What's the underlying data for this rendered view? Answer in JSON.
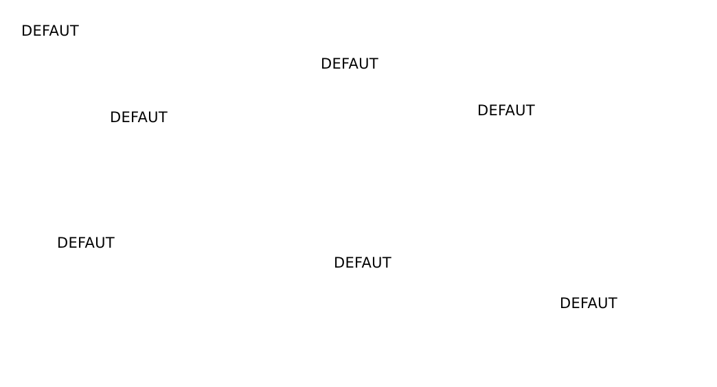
{
  "labels": [
    "DEFAUT",
    "DEFAUT",
    "DEFAUT",
    "DEFAUT",
    "DEFAUT",
    "DEFAUT",
    "DEFAUT"
  ],
  "colors": {
    "background": "#ffffff",
    "text": "#000000"
  }
}
